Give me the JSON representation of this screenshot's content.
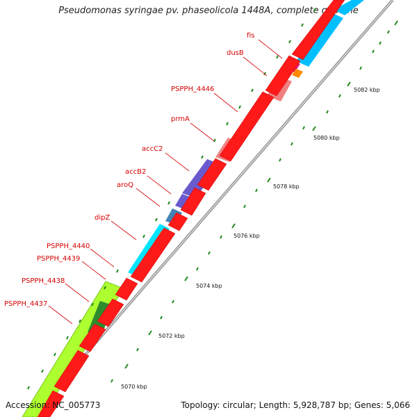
{
  "title": "Pseudomonas syringae pv. phaseolicola 1448A, complete genome",
  "footer": {
    "accession": "Accession: NC_005773",
    "summary": "Topology: circular; Length: 5,928,787 bp; Genes: 5,066"
  },
  "colors": {
    "cds": "#ff0000",
    "backbone": "#999999",
    "tick": "#1f8a1f",
    "label": "#d40000"
  },
  "gene_labels": [
    {
      "name": "fis",
      "color": "#e8198b"
    },
    {
      "name": "dusB",
      "color": "#ff8a00"
    },
    {
      "name": "PSPPH_4446",
      "color": "#f28080"
    },
    {
      "name": "prmA",
      "color": "#f28080"
    },
    {
      "name": "accC2",
      "color": "#6a5acd"
    },
    {
      "name": "accB2",
      "color": "#6a5acd"
    },
    {
      "name": "aroQ",
      "color": "#4682b4"
    },
    {
      "name": "dipZ",
      "color": "#00e5ff"
    },
    {
      "name": "PSPPH_4440",
      "color": "#b8b070"
    },
    {
      "name": "PSPPH_4439",
      "color": "#00e5ff"
    },
    {
      "name": "PSPPH_4438",
      "color": "#adff2f"
    },
    {
      "name": "PSPPH_4437",
      "color": "#2e8b2e"
    }
  ],
  "tick_labels": [
    "5082 kbp",
    "5080 kbp",
    "5078 kbp",
    "5076 kbp",
    "5074 kbp",
    "5072 kbp",
    "5070 kbp"
  ]
}
